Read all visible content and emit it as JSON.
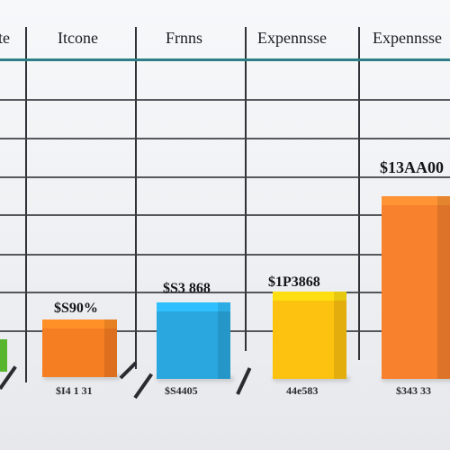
{
  "headers": {
    "col0": "te",
    "col1": "Itcone",
    "col2": "Frnns",
    "col3": "Expennsse",
    "col4": "Expennsse"
  },
  "price_labels": {
    "orange_small": "$S90%",
    "blue": "$S3 868",
    "yellow": "$1P3868",
    "orange_tall": "$13AA00"
  },
  "footer_labels": {
    "f1": "$I4 1 31",
    "f2": "$S4405",
    "f3": "44e583",
    "f4": "$343 33"
  },
  "colors": {
    "green": "#58b52e",
    "orange": "#f57d22",
    "blue": "#2aa7df",
    "yellow": "#fdc20f",
    "orange_tall": "#f7812d"
  }
}
